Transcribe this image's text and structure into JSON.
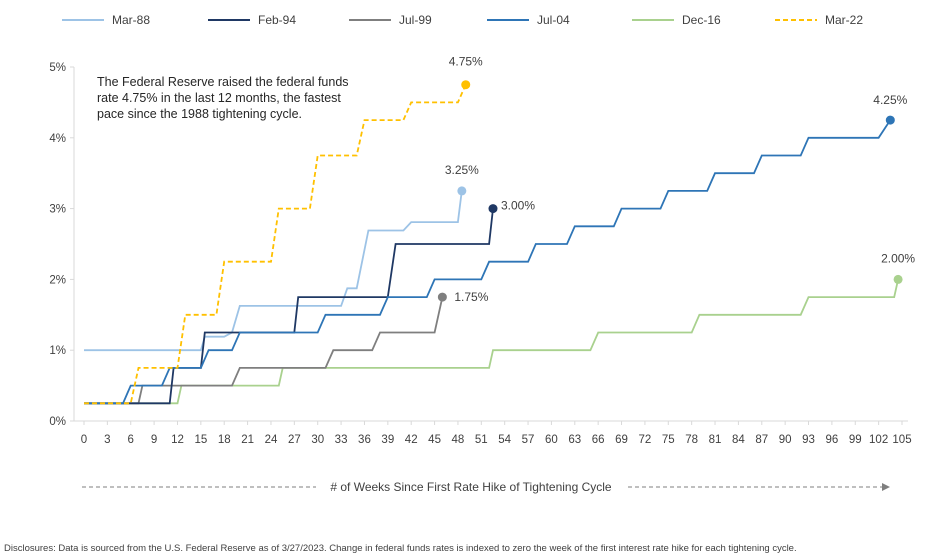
{
  "chart_data": {
    "type": "line",
    "step": true,
    "xlabel": "# of Weeks Since First Rate Hike of Tightening Cycle",
    "ylabel": "",
    "xlim": [
      0,
      105
    ],
    "ylim": [
      0,
      5
    ],
    "x_ticks": [
      0,
      3,
      6,
      9,
      12,
      15,
      18,
      21,
      24,
      27,
      30,
      33,
      36,
      39,
      42,
      45,
      48,
      51,
      54,
      57,
      60,
      63,
      66,
      69,
      72,
      75,
      78,
      81,
      84,
      87,
      90,
      93,
      96,
      99,
      102,
      105
    ],
    "y_ticks": [
      0,
      1,
      2,
      3,
      4,
      5
    ],
    "y_tick_labels": [
      "0%",
      "1%",
      "2%",
      "3%",
      "4%",
      "5%"
    ],
    "grid": false,
    "legend_position": "top",
    "annotation": "The Federal Reserve raised the federal funds rate 4.75% in the last 12 months, the fastest pace since the 1988 tightening cycle.",
    "disclosure": "Disclosures: Data is sourced from the U.S. Federal Reserve as of 3/27/2023. Change in federal funds rates is indexed to zero the week of the first interest rate hike for each tightening cycle.",
    "series": [
      {
        "name": "Mar-88",
        "color": "#9DC3E6",
        "dash": false,
        "end_label": "3.25%",
        "points": [
          [
            0,
            1.0
          ],
          [
            15,
            1.0
          ],
          [
            15.5,
            1.19
          ],
          [
            18,
            1.19
          ],
          [
            19,
            1.25
          ],
          [
            20,
            1.625
          ],
          [
            33,
            1.625
          ],
          [
            33.8,
            1.875
          ],
          [
            35,
            1.875
          ],
          [
            36.5,
            2.69
          ],
          [
            41,
            2.69
          ],
          [
            42,
            2.81
          ],
          [
            48,
            2.81
          ],
          [
            48.5,
            3.25
          ]
        ]
      },
      {
        "name": "Feb-94",
        "color": "#1F3864",
        "dash": false,
        "end_label": "3.00%",
        "points": [
          [
            0,
            0.25
          ],
          [
            11,
            0.25
          ],
          [
            11.5,
            0.75
          ],
          [
            15,
            0.75
          ],
          [
            15.5,
            1.25
          ],
          [
            27,
            1.25
          ],
          [
            27.5,
            1.75
          ],
          [
            39,
            1.75
          ],
          [
            40,
            2.5
          ],
          [
            52,
            2.5
          ],
          [
            52.5,
            3.0
          ]
        ]
      },
      {
        "name": "Jul-99",
        "color": "#7F7F7F",
        "dash": false,
        "end_label": "1.75%",
        "points": [
          [
            0,
            0.25
          ],
          [
            7,
            0.25
          ],
          [
            7.5,
            0.5
          ],
          [
            19,
            0.5
          ],
          [
            20,
            0.75
          ],
          [
            31,
            0.75
          ],
          [
            32,
            1.0
          ],
          [
            37,
            1.0
          ],
          [
            38,
            1.25
          ],
          [
            45,
            1.25
          ],
          [
            46,
            1.75
          ]
        ]
      },
      {
        "name": "Jul-04",
        "color": "#2E75B6",
        "dash": false,
        "end_label": "4.25%",
        "points": [
          [
            0,
            0.25
          ],
          [
            5,
            0.25
          ],
          [
            6,
            0.5
          ],
          [
            10,
            0.5
          ],
          [
            11,
            0.75
          ],
          [
            15,
            0.75
          ],
          [
            16,
            1.0
          ],
          [
            19,
            1.0
          ],
          [
            20,
            1.25
          ],
          [
            30,
            1.25
          ],
          [
            31,
            1.5
          ],
          [
            38,
            1.5
          ],
          [
            39,
            1.75
          ],
          [
            44,
            1.75
          ],
          [
            45,
            2.0
          ],
          [
            51,
            2.0
          ],
          [
            52,
            2.25
          ],
          [
            57,
            2.25
          ],
          [
            58,
            2.5
          ],
          [
            62,
            2.5
          ],
          [
            63,
            2.75
          ],
          [
            68,
            2.75
          ],
          [
            69,
            3.0
          ],
          [
            74,
            3.0
          ],
          [
            75,
            3.25
          ],
          [
            80,
            3.25
          ],
          [
            81,
            3.5
          ],
          [
            86,
            3.5
          ],
          [
            87,
            3.75
          ],
          [
            92,
            3.75
          ],
          [
            93,
            4.0
          ],
          [
            102,
            4.0
          ],
          [
            103.5,
            4.25
          ]
        ]
      },
      {
        "name": "Dec-16",
        "color": "#A9D18E",
        "dash": false,
        "end_label": "2.00%",
        "points": [
          [
            0,
            0.25
          ],
          [
            12,
            0.25
          ],
          [
            12.5,
            0.5
          ],
          [
            25,
            0.5
          ],
          [
            25.5,
            0.75
          ],
          [
            52,
            0.75
          ],
          [
            52.5,
            1.0
          ],
          [
            65,
            1.0
          ],
          [
            66,
            1.25
          ],
          [
            78,
            1.25
          ],
          [
            79,
            1.5
          ],
          [
            92,
            1.5
          ],
          [
            93,
            1.75
          ],
          [
            104,
            1.75
          ],
          [
            104.5,
            2.0
          ]
        ]
      },
      {
        "name": "Mar-22",
        "color": "#FFC000",
        "dash": true,
        "end_label": "4.75%",
        "points": [
          [
            0,
            0.25
          ],
          [
            6,
            0.25
          ],
          [
            7,
            0.75
          ],
          [
            12,
            0.75
          ],
          [
            13,
            1.5
          ],
          [
            17,
            1.5
          ],
          [
            18,
            2.25
          ],
          [
            24,
            2.25
          ],
          [
            25,
            3.0
          ],
          [
            29,
            3.0
          ],
          [
            30,
            3.75
          ],
          [
            35,
            3.75
          ],
          [
            36,
            4.25
          ],
          [
            41,
            4.25
          ],
          [
            42,
            4.5
          ],
          [
            48,
            4.5
          ],
          [
            49,
            4.75
          ]
        ]
      }
    ]
  }
}
